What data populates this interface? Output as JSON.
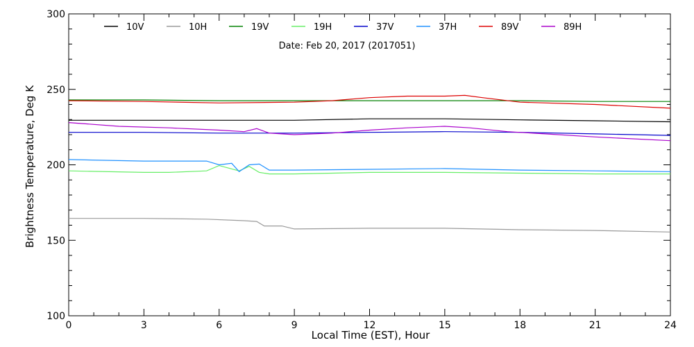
{
  "chart_data": {
    "type": "line",
    "title": "",
    "annotation": "Date: Feb 20, 2017 (2017051)",
    "xlabel": "Local Time (EST), Hour",
    "ylabel": "Brightness Temperature, Deg K",
    "xlim": [
      0,
      24
    ],
    "ylim": [
      100,
      300
    ],
    "xticks": [
      "0",
      "3",
      "6",
      "9",
      "12",
      "15",
      "18",
      "21",
      "24"
    ],
    "yticks": [
      "100",
      "150",
      "200",
      "250",
      "300"
    ],
    "grid": false,
    "legend_position": "top",
    "series": [
      {
        "name": "10V",
        "color": "#000000",
        "x": [
          0,
          3,
          6,
          9,
          12,
          15,
          18,
          21,
          24
        ],
        "y": [
          229.5,
          229.5,
          229.5,
          229.5,
          230.5,
          230.5,
          229.8,
          229.2,
          228.5
        ]
      },
      {
        "name": "10H",
        "color": "#999999",
        "x": [
          0,
          3,
          5.5,
          7,
          7.5,
          7.8,
          8.5,
          9,
          12,
          15,
          18,
          21,
          24
        ],
        "y": [
          164.5,
          164.5,
          164,
          163,
          162.5,
          159.5,
          159.5,
          157.5,
          158,
          158,
          157,
          156.5,
          155.5
        ]
      },
      {
        "name": "19V",
        "color": "#008000",
        "x": [
          0,
          3,
          6,
          9,
          12,
          15,
          18,
          21,
          24
        ],
        "y": [
          243,
          243,
          242.5,
          242.5,
          242.5,
          242.5,
          242.5,
          242,
          242
        ]
      },
      {
        "name": "19H",
        "color": "#66ee66",
        "x": [
          0,
          3,
          4,
          5.5,
          6,
          6.8,
          7.2,
          7.6,
          8,
          9,
          12,
          15,
          18,
          21,
          24
        ],
        "y": [
          196,
          195,
          195,
          196,
          199.5,
          196,
          199,
          195,
          194,
          194,
          195,
          195,
          194.5,
          194,
          194
        ]
      },
      {
        "name": "37V",
        "color": "#0000cc",
        "x": [
          0,
          3,
          6,
          9,
          12,
          15,
          18,
          21,
          24
        ],
        "y": [
          221.5,
          221.5,
          221,
          221,
          221.5,
          222,
          221.5,
          220.5,
          219.5
        ]
      },
      {
        "name": "37H",
        "color": "#1e90ff",
        "x": [
          0,
          3,
          5.5,
          6,
          6.5,
          6.8,
          7.2,
          7.6,
          8,
          9,
          12,
          15,
          18,
          21,
          24
        ],
        "y": [
          203.5,
          202.5,
          202.5,
          200,
          201,
          195.5,
          200,
          200.5,
          196.5,
          196.5,
          197,
          197.5,
          196.5,
          196,
          195.5
        ]
      },
      {
        "name": "89V",
        "color": "#dd0000",
        "x": [
          0,
          3,
          6,
          9,
          10.5,
          12,
          13.5,
          15,
          15.8,
          16.5,
          18,
          21,
          24
        ],
        "y": [
          242.5,
          242,
          241,
          241.5,
          242.5,
          244.5,
          245.5,
          245.5,
          246,
          244.5,
          241.5,
          240,
          237.5
        ]
      },
      {
        "name": "89H",
        "color": "#aa00cc",
        "x": [
          0,
          2,
          4,
          6,
          7,
          7.5,
          8,
          9,
          10.5,
          12,
          13.5,
          15,
          16,
          17.5,
          19,
          21,
          24
        ],
        "y": [
          228,
          225.5,
          224.5,
          223,
          222,
          224,
          221,
          220,
          221,
          223,
          224.5,
          225.5,
          224.5,
          222,
          220.5,
          218.5,
          216
        ]
      }
    ]
  }
}
